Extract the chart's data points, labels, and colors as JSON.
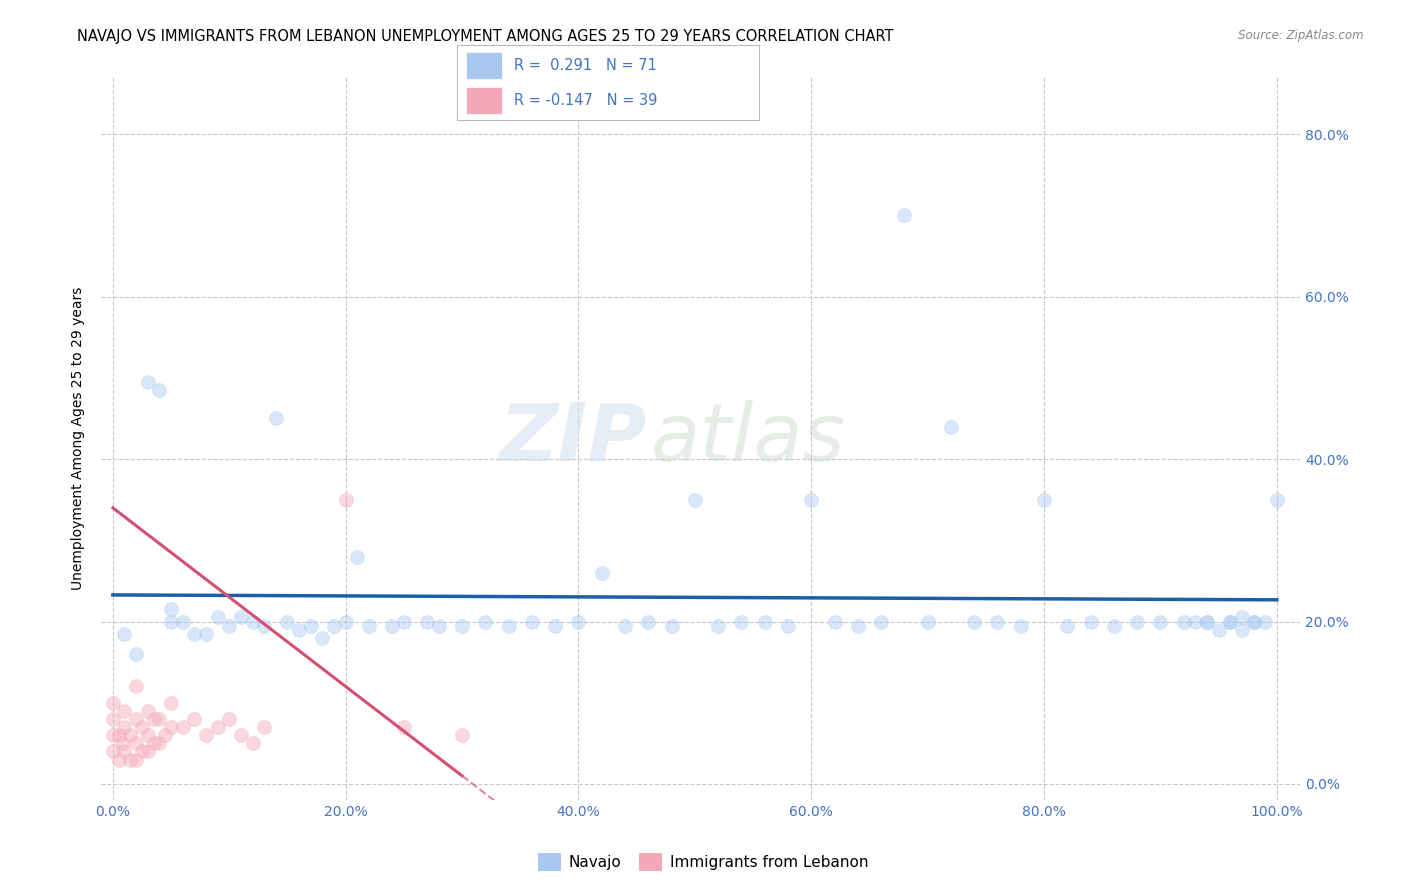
{
  "title": "NAVAJO VS IMMIGRANTS FROM LEBANON UNEMPLOYMENT AMONG AGES 25 TO 29 YEARS CORRELATION CHART",
  "source": "Source: ZipAtlas.com",
  "ylabel": "Unemployment Among Ages 25 to 29 years",
  "watermark_zip": "ZIP",
  "watermark_atlas": "atlas",
  "legend1_label": "Navajo",
  "legend2_label": "Immigrants from Lebanon",
  "R1": 0.291,
  "N1": 71,
  "R2": -0.147,
  "N2": 39,
  "navajo_color": "#a8c8f0",
  "lebanon_color": "#f5a8b8",
  "navajo_line_color": "#1a5fa8",
  "lebanon_line_color": "#d45070",
  "navajo_x": [
    0.01,
    0.02,
    0.03,
    0.04,
    0.05,
    0.05,
    0.06,
    0.07,
    0.08,
    0.09,
    0.1,
    0.11,
    0.12,
    0.13,
    0.14,
    0.15,
    0.16,
    0.17,
    0.18,
    0.19,
    0.2,
    0.21,
    0.22,
    0.24,
    0.25,
    0.27,
    0.28,
    0.3,
    0.32,
    0.34,
    0.36,
    0.38,
    0.4,
    0.42,
    0.44,
    0.46,
    0.48,
    0.5,
    0.52,
    0.54,
    0.56,
    0.58,
    0.6,
    0.62,
    0.64,
    0.66,
    0.68,
    0.7,
    0.72,
    0.74,
    0.76,
    0.78,
    0.8,
    0.82,
    0.84,
    0.86,
    0.88,
    0.9,
    0.92,
    0.94,
    0.96,
    0.97,
    0.98,
    0.99,
    1.0,
    0.93,
    0.94,
    0.95,
    0.96,
    0.97,
    0.98
  ],
  "navajo_y": [
    0.185,
    0.16,
    0.495,
    0.485,
    0.2,
    0.215,
    0.2,
    0.185,
    0.185,
    0.205,
    0.195,
    0.205,
    0.2,
    0.195,
    0.45,
    0.2,
    0.19,
    0.195,
    0.18,
    0.195,
    0.2,
    0.28,
    0.195,
    0.195,
    0.2,
    0.2,
    0.195,
    0.195,
    0.2,
    0.195,
    0.2,
    0.195,
    0.2,
    0.26,
    0.195,
    0.2,
    0.195,
    0.35,
    0.195,
    0.2,
    0.2,
    0.195,
    0.35,
    0.2,
    0.195,
    0.2,
    0.7,
    0.2,
    0.44,
    0.2,
    0.2,
    0.195,
    0.35,
    0.195,
    0.2,
    0.195,
    0.2,
    0.2,
    0.2,
    0.2,
    0.2,
    0.19,
    0.2,
    0.2,
    0.35,
    0.2,
    0.2,
    0.19,
    0.2,
    0.205,
    0.2
  ],
  "lebanon_x": [
    0.0,
    0.0,
    0.0,
    0.0,
    0.005,
    0.005,
    0.008,
    0.01,
    0.01,
    0.01,
    0.015,
    0.015,
    0.02,
    0.02,
    0.02,
    0.02,
    0.025,
    0.025,
    0.03,
    0.03,
    0.03,
    0.035,
    0.035,
    0.04,
    0.04,
    0.045,
    0.05,
    0.05,
    0.06,
    0.07,
    0.08,
    0.09,
    0.1,
    0.11,
    0.12,
    0.13,
    0.2,
    0.25,
    0.3
  ],
  "lebanon_y": [
    0.04,
    0.06,
    0.08,
    0.1,
    0.03,
    0.06,
    0.05,
    0.04,
    0.07,
    0.09,
    0.03,
    0.06,
    0.03,
    0.05,
    0.08,
    0.12,
    0.04,
    0.07,
    0.04,
    0.06,
    0.09,
    0.05,
    0.08,
    0.05,
    0.08,
    0.06,
    0.07,
    0.1,
    0.07,
    0.08,
    0.06,
    0.07,
    0.08,
    0.06,
    0.05,
    0.07,
    0.35,
    0.07,
    0.06
  ],
  "xticks": [
    0.0,
    0.2,
    0.4,
    0.6,
    0.8,
    1.0
  ],
  "xtick_labels": [
    "0.0%",
    "20.0%",
    "40.0%",
    "60.0%",
    "80.0%",
    "100.0%"
  ],
  "yticks": [
    0.0,
    0.2,
    0.4,
    0.6,
    0.8
  ],
  "ytick_labels": [
    "0.0%",
    "20.0%",
    "40.0%",
    "60.0%",
    "80.0%"
  ],
  "tick_color": "#4472c4",
  "background_color": "#ffffff",
  "grid_color": "#c8c8c8",
  "marker_size": 100,
  "marker_alpha": 0.45,
  "title_fontsize": 10.5,
  "label_fontsize": 10,
  "tick_fontsize": 10
}
